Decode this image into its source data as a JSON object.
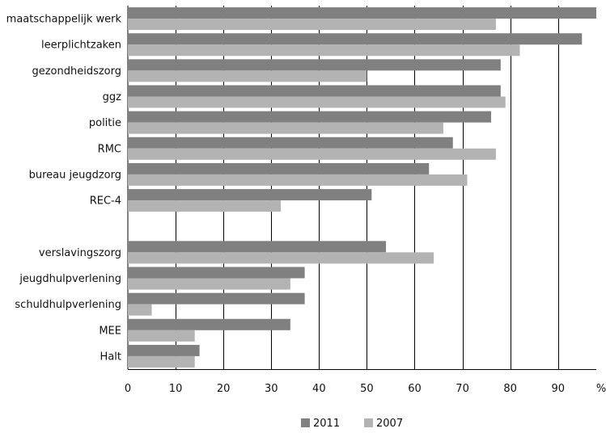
{
  "chart_data": {
    "type": "bar",
    "orientation": "horizontal",
    "categories": [
      "maatschappelijk werk",
      "leerplichtzaken",
      "gezondheidszorg",
      "ggz",
      "politie",
      "RMC",
      "bureau jeugdzorg",
      "REC-4",
      "",
      "verslavingszorg",
      "jeugdhulpverlening",
      "schuldhulpverlening",
      "MEE",
      "Halt"
    ],
    "series": [
      {
        "name": "2011",
        "color": "#808080",
        "values": [
          98,
          95,
          78,
          78,
          76,
          68,
          63,
          51,
          null,
          54,
          37,
          37,
          34,
          15
        ]
      },
      {
        "name": "2007",
        "color": "#b3b3b3",
        "values": [
          77,
          82,
          50,
          79,
          66,
          77,
          71,
          32,
          null,
          64,
          34,
          5,
          14,
          14
        ]
      }
    ],
    "title": "",
    "xlabel": "",
    "ylabel": "",
    "unit": "%",
    "xlim": [
      0,
      98
    ],
    "xticks": [
      0,
      10,
      20,
      30,
      40,
      50,
      60,
      70,
      80,
      90
    ],
    "grid": "vertical",
    "legend": "bottom-center"
  }
}
